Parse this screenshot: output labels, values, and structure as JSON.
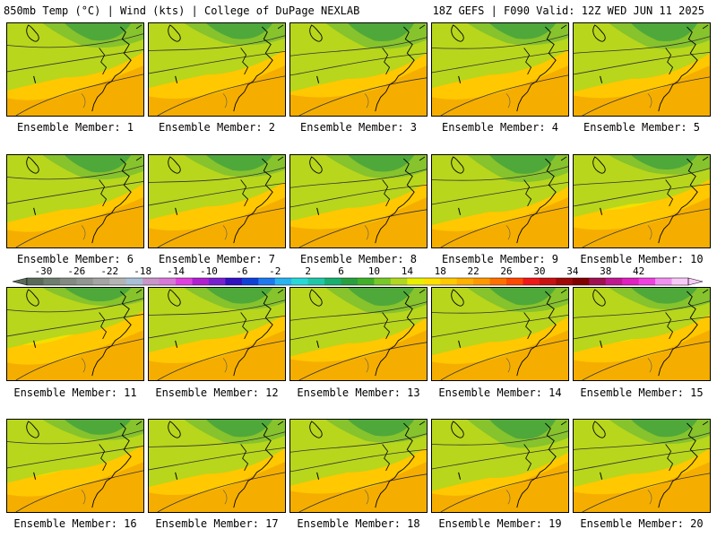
{
  "header": {
    "left": "850mb Temp (°C) | Wind (kts) | College of DuPage NEXLAB",
    "right": "18Z GEFS | F090 Valid: 12Z WED JUN 11 2025"
  },
  "members": [
    {
      "label": "Ensemble Member: 1",
      "green": 0.55
    },
    {
      "label": "Ensemble Member: 2",
      "green": 0.45
    },
    {
      "label": "Ensemble Member: 3",
      "green": 0.6
    },
    {
      "label": "Ensemble Member: 4",
      "green": 0.45
    },
    {
      "label": "Ensemble Member: 5",
      "green": 0.6
    },
    {
      "label": "Ensemble Member: 6",
      "green": 0.55
    },
    {
      "label": "Ensemble Member: 7",
      "green": 0.45
    },
    {
      "label": "Ensemble Member: 8",
      "green": 0.5
    },
    {
      "label": "Ensemble Member: 9",
      "green": 0.65
    },
    {
      "label": "Ensemble Member: 10",
      "green": 0.35
    },
    {
      "label": "Ensemble Member: 11",
      "green": 0.3
    },
    {
      "label": "Ensemble Member: 12",
      "green": 0.45
    },
    {
      "label": "Ensemble Member: 13",
      "green": 0.6
    },
    {
      "label": "Ensemble Member: 14",
      "green": 0.55
    },
    {
      "label": "Ensemble Member: 15",
      "green": 0.45
    },
    {
      "label": "Ensemble Member: 16",
      "green": 0.4
    },
    {
      "label": "Ensemble Member: 17",
      "green": 0.55
    },
    {
      "label": "Ensemble Member: 18",
      "green": 0.5
    },
    {
      "label": "Ensemble Member: 19",
      "green": 0.7
    },
    {
      "label": "Ensemble Member: 20",
      "green": 0.55
    }
  ],
  "colorbar": {
    "tick_labels": [
      "-30",
      "-26",
      "-22",
      "-18",
      "-14",
      "-10",
      "-6",
      "-2",
      "2",
      "6",
      "10",
      "14",
      "18",
      "22",
      "26",
      "30",
      "34",
      "38",
      "42"
    ],
    "colors": [
      "#5a6a5a",
      "#6e7e6e",
      "#828a82",
      "#929692",
      "#a4a4a4",
      "#b4b4b4",
      "#a8c0d8",
      "#c896c8",
      "#d878d8",
      "#e040e0",
      "#b020d0",
      "#7820d0",
      "#3010c0",
      "#1040d8",
      "#1e78f0",
      "#28b4f0",
      "#28d8d8",
      "#20c8a8",
      "#18b070",
      "#28a040",
      "#40b028",
      "#78c828",
      "#b0d820",
      "#e8f000",
      "#ffe000",
      "#ffc800",
      "#ffb000",
      "#ff9800",
      "#ff7000",
      "#ff4800",
      "#f01818",
      "#c81010",
      "#a00808",
      "#800000",
      "#a01050",
      "#c01890",
      "#e020c0",
      "#f040e0",
      "#f090f0",
      "#f8c8f8"
    ]
  }
}
